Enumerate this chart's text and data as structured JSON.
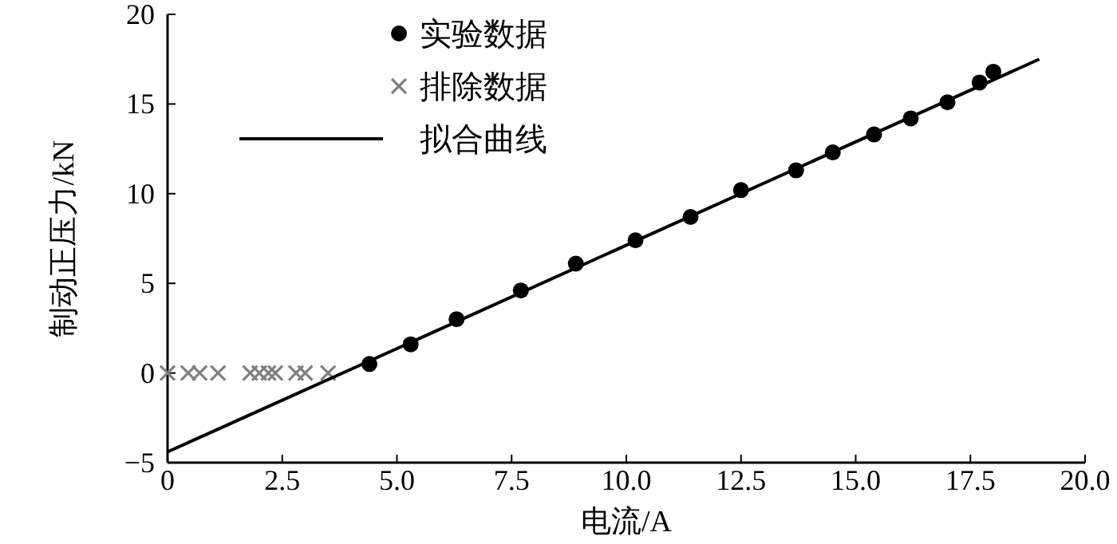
{
  "chart_data": {
    "type": "scatter",
    "xlabel": "电流/A",
    "ylabel": "制动正压力/kN",
    "xlim": [
      0,
      20
    ],
    "ylim": [
      -5,
      20
    ],
    "xticks": [
      0,
      2.5,
      {
        "value": 5,
        "label": "5.0"
      },
      7.5,
      {
        "value": 10,
        "label": "10.0"
      },
      12.5,
      {
        "value": 15,
        "label": "15.0"
      },
      17.5,
      {
        "value": 20,
        "label": "20.0"
      }
    ],
    "yticks": [
      {
        "value": -5,
        "label": "−5"
      },
      0,
      5,
      10,
      15,
      20
    ],
    "grid": false,
    "legend": "top left",
    "series": [
      {
        "name": "实验数据",
        "type": "scatter",
        "marker": "circle",
        "color": "#000000",
        "x": [
          4.4,
          5.3,
          6.3,
          7.7,
          8.9,
          10.2,
          11.4,
          12.5,
          13.7,
          14.5,
          15.4,
          16.2,
          17.0,
          17.7,
          18.0
        ],
        "values": [
          0.5,
          1.6,
          3.0,
          4.6,
          6.1,
          7.4,
          8.7,
          10.2,
          11.3,
          12.3,
          13.3,
          14.2,
          15.1,
          16.2,
          16.8
        ]
      },
      {
        "name": "排除数据",
        "type": "scatter",
        "marker": "cross",
        "color": "#808080",
        "x": [
          0,
          0.45,
          0.7,
          1.1,
          1.8,
          2.0,
          2.2,
          2.35,
          2.8,
          3.0,
          3.5
        ],
        "values": [
          0,
          0,
          0,
          0,
          0,
          0,
          0,
          0,
          0,
          0,
          0
        ]
      },
      {
        "name": "拟合曲线",
        "type": "line",
        "marker": "none",
        "line_style": "solid",
        "color": "#000000",
        "x": [
          0,
          19
        ],
        "values": [
          -4.4,
          17.5
        ]
      }
    ]
  }
}
